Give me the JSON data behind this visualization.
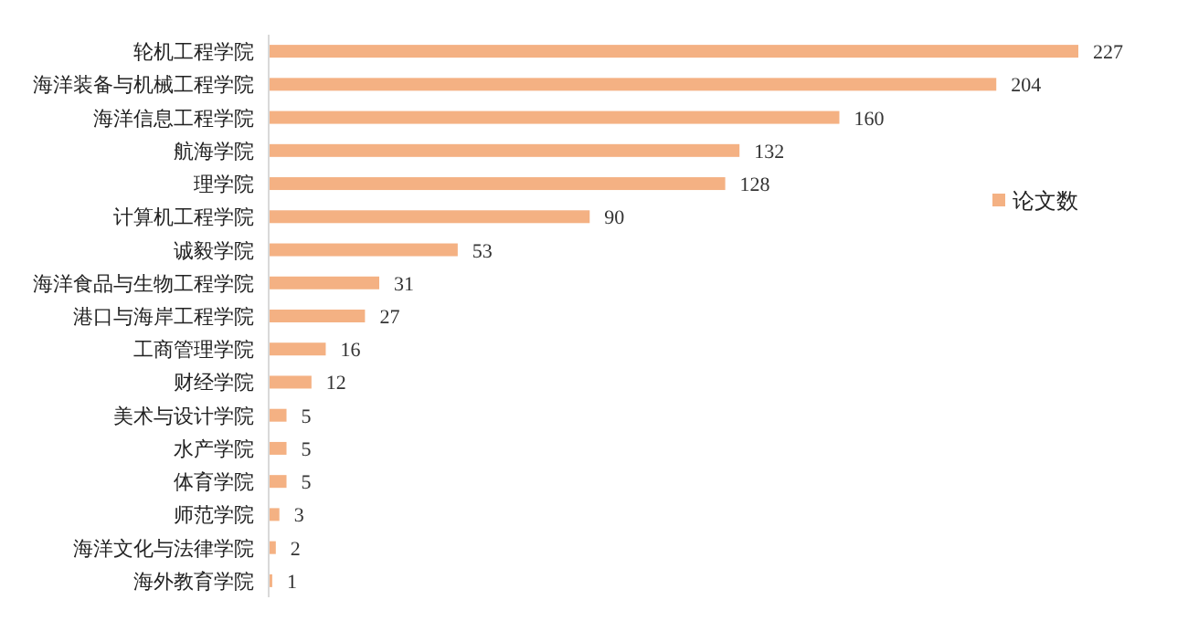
{
  "chart_data": {
    "type": "bar",
    "orientation": "horizontal",
    "categories": [
      "轮机工程学院",
      "海洋装备与机械工程学院",
      "海洋信息工程学院",
      "航海学院",
      "理学院",
      "计算机工程学院",
      "诚毅学院",
      "海洋食品与生物工程学院",
      "港口与海岸工程学院",
      "工商管理学院",
      "财经学院",
      "美术与设计学院",
      "水产学院",
      "体育学院",
      "师范学院",
      "海洋文化与法律学院",
      "海外教育学院"
    ],
    "series": [
      {
        "name": "论文数",
        "color": "#f4b183",
        "values": [
          227,
          204,
          160,
          132,
          128,
          90,
          53,
          31,
          27,
          16,
          12,
          5,
          5,
          5,
          3,
          2,
          1
        ]
      }
    ],
    "data_labels": true,
    "legend": "right",
    "grid": false
  }
}
